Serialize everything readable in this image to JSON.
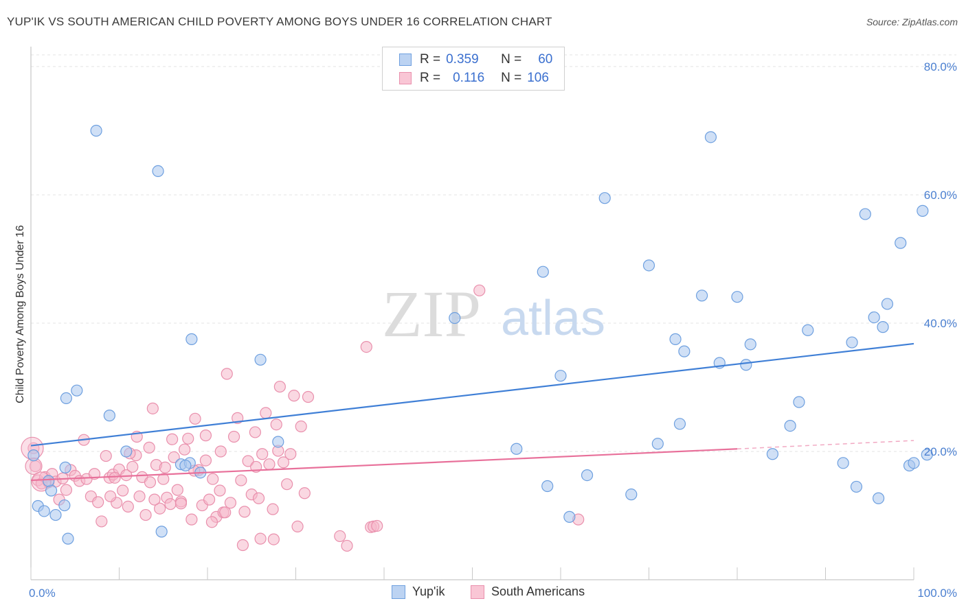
{
  "title": "YUP'IK VS SOUTH AMERICAN CHILD POVERTY AMONG BOYS UNDER 16 CORRELATION CHART",
  "source": "Source: ZipAtlas.com",
  "watermark": {
    "zip": "ZIP",
    "atlas": "atlas"
  },
  "colors": {
    "blue_fill": "#aac6ee",
    "blue_stroke": "#6d9fdf",
    "blue_line": "#3f7fd6",
    "pink_fill": "#f6b8cb",
    "pink_stroke": "#e98fac",
    "pink_line": "#e8709a",
    "tick_text": "#4a7fd0",
    "grid": "#e3e3e3"
  },
  "legend": {
    "rows": [
      {
        "r_label": "R =",
        "r_value": "0.359",
        "n_label": "N =",
        "n_value": "60"
      },
      {
        "r_label": "R =",
        "r_value": "0.116",
        "n_label": "N =",
        "n_value": "106"
      }
    ]
  },
  "bottom_legend": [
    "Yup'ik",
    "South Americans"
  ],
  "chart_data": {
    "type": "scatter",
    "title": "YUP'IK VS SOUTH AMERICAN CHILD POVERTY AMONG BOYS UNDER 16 CORRELATION CHART",
    "xlabel": "",
    "ylabel": "Child Poverty Among Boys Under 16",
    "xlim": [
      0,
      100
    ],
    "ylim": [
      0,
      85
    ],
    "x_tick_labels": [
      "0.0%",
      "100.0%"
    ],
    "y_ticks": [
      20,
      40,
      60,
      80
    ],
    "y_tick_labels": [
      "20.0%",
      "40.0%",
      "60.0%",
      "80.0%"
    ],
    "grid": true,
    "series": [
      {
        "name": "Yup'ik",
        "r": 0.359,
        "n": 60,
        "trend": {
          "x": [
            0,
            100
          ],
          "y": [
            20.9,
            36.8
          ]
        },
        "points": [
          [
            0.3,
            19.4
          ],
          [
            0.8,
            11.5
          ],
          [
            1.5,
            10.7
          ],
          [
            2.3,
            13.9
          ],
          [
            2.8,
            10.1
          ],
          [
            3.8,
            11.6
          ],
          [
            4.2,
            6.4
          ],
          [
            3.9,
            17.5
          ],
          [
            4.0,
            28.3
          ],
          [
            5.2,
            29.5
          ],
          [
            7.4,
            70.0
          ],
          [
            8.9,
            25.6
          ],
          [
            10.8,
            20.0
          ],
          [
            14.4,
            63.7
          ],
          [
            14.8,
            7.5
          ],
          [
            17.0,
            18.0
          ],
          [
            18.0,
            18.2
          ],
          [
            18.2,
            37.5
          ],
          [
            19.2,
            16.7
          ],
          [
            26.0,
            34.3
          ],
          [
            28.0,
            21.5
          ],
          [
            48.0,
            40.8
          ],
          [
            55.0,
            20.4
          ],
          [
            58.0,
            48.0
          ],
          [
            58.5,
            14.6
          ],
          [
            60.0,
            31.8
          ],
          [
            61.0,
            9.8
          ],
          [
            63.0,
            16.3
          ],
          [
            65.0,
            59.5
          ],
          [
            68.0,
            13.3
          ],
          [
            70.0,
            49.0
          ],
          [
            71.0,
            21.2
          ],
          [
            73.0,
            37.5
          ],
          [
            73.5,
            24.3
          ],
          [
            74.0,
            35.6
          ],
          [
            76.0,
            44.3
          ],
          [
            77.0,
            69.0
          ],
          [
            78.0,
            33.8
          ],
          [
            80.0,
            44.1
          ],
          [
            81.0,
            33.5
          ],
          [
            81.5,
            36.7
          ],
          [
            84.0,
            19.6
          ],
          [
            86.0,
            24.0
          ],
          [
            87.0,
            27.7
          ],
          [
            88.0,
            38.9
          ],
          [
            92.0,
            18.2
          ],
          [
            93.0,
            37.0
          ],
          [
            93.5,
            14.5
          ],
          [
            94.5,
            57.0
          ],
          [
            95.5,
            40.9
          ],
          [
            96.5,
            39.4
          ],
          [
            96.0,
            12.7
          ],
          [
            97.0,
            43.0
          ],
          [
            98.5,
            52.5
          ],
          [
            99.5,
            17.8
          ],
          [
            101.0,
            57.5
          ],
          [
            100.0,
            18.2
          ],
          [
            101.5,
            19.5
          ],
          [
            2.0,
            15.4
          ],
          [
            17.5,
            17.8
          ]
        ]
      },
      {
        "name": "South Americans",
        "r": 0.116,
        "n": 106,
        "trend": {
          "x": [
            0,
            80
          ],
          "y": [
            15.5,
            20.4
          ]
        },
        "trend_dashed": {
          "x": [
            80,
            100
          ],
          "y": [
            20.4,
            21.7
          ]
        },
        "points": [
          [
            0.3,
            20.5
          ],
          [
            0.5,
            17.7
          ],
          [
            0.8,
            15.5
          ],
          [
            1.2,
            15.0
          ],
          [
            1.6,
            16.0
          ],
          [
            2.0,
            15.2
          ],
          [
            2.4,
            16.5
          ],
          [
            2.8,
            15.3
          ],
          [
            3.2,
            12.5
          ],
          [
            3.6,
            15.8
          ],
          [
            4.0,
            14.0
          ],
          [
            4.5,
            17.1
          ],
          [
            5.0,
            16.2
          ],
          [
            5.5,
            15.4
          ],
          [
            6.0,
            21.8
          ],
          [
            6.3,
            15.7
          ],
          [
            6.8,
            13.0
          ],
          [
            7.2,
            16.5
          ],
          [
            7.6,
            12.1
          ],
          [
            8.0,
            9.1
          ],
          [
            8.5,
            19.3
          ],
          [
            8.9,
            15.9
          ],
          [
            9.3,
            16.4
          ],
          [
            9.7,
            12.0
          ],
          [
            10.0,
            17.2
          ],
          [
            10.4,
            13.9
          ],
          [
            10.8,
            16.3
          ],
          [
            11.0,
            11.4
          ],
          [
            11.5,
            17.6
          ],
          [
            11.9,
            19.4
          ],
          [
            12.3,
            13.0
          ],
          [
            12.6,
            16.0
          ],
          [
            13.0,
            10.1
          ],
          [
            13.4,
            20.6
          ],
          [
            13.8,
            26.7
          ],
          [
            14.2,
            17.9
          ],
          [
            14.6,
            11.1
          ],
          [
            15.0,
            15.7
          ],
          [
            15.4,
            12.8
          ],
          [
            15.8,
            11.8
          ],
          [
            16.2,
            19.1
          ],
          [
            16.6,
            14.0
          ],
          [
            17.0,
            12.2
          ],
          [
            17.4,
            20.3
          ],
          [
            17.8,
            22.0
          ],
          [
            18.2,
            9.4
          ],
          [
            18.6,
            25.1
          ],
          [
            19.0,
            17.1
          ],
          [
            19.4,
            11.6
          ],
          [
            19.8,
            18.6
          ],
          [
            20.2,
            12.5
          ],
          [
            20.6,
            15.7
          ],
          [
            21.0,
            9.8
          ],
          [
            21.4,
            13.9
          ],
          [
            21.8,
            10.5
          ],
          [
            22.2,
            32.1
          ],
          [
            22.6,
            12.0
          ],
          [
            23.0,
            22.3
          ],
          [
            23.4,
            25.2
          ],
          [
            23.8,
            15.5
          ],
          [
            24.2,
            10.6
          ],
          [
            24.6,
            18.5
          ],
          [
            25.0,
            13.3
          ],
          [
            25.4,
            23.0
          ],
          [
            25.8,
            12.7
          ],
          [
            26.2,
            19.6
          ],
          [
            26.6,
            26.0
          ],
          [
            27.0,
            18.0
          ],
          [
            27.4,
            11.0
          ],
          [
            27.8,
            24.2
          ],
          [
            28.2,
            30.1
          ],
          [
            28.6,
            18.3
          ],
          [
            29.0,
            14.9
          ],
          [
            29.4,
            19.6
          ],
          [
            29.8,
            28.7
          ],
          [
            30.2,
            8.3
          ],
          [
            30.6,
            23.9
          ],
          [
            31.0,
            13.5
          ],
          [
            31.4,
            28.5
          ],
          [
            18.5,
            17.0
          ],
          [
            20.5,
            9.0
          ],
          [
            22.0,
            10.5
          ],
          [
            24.0,
            5.4
          ],
          [
            26.0,
            6.4
          ],
          [
            27.5,
            6.3
          ],
          [
            35.0,
            6.8
          ],
          [
            35.8,
            5.3
          ],
          [
            38.5,
            8.2
          ],
          [
            38.8,
            8.3
          ],
          [
            39.2,
            8.4
          ],
          [
            38.0,
            36.3
          ],
          [
            50.8,
            45.1
          ],
          [
            62.0,
            9.4
          ],
          [
            13.5,
            15.2
          ],
          [
            16.0,
            21.9
          ],
          [
            12.0,
            22.3
          ],
          [
            9.0,
            13.0
          ],
          [
            11.2,
            19.7
          ],
          [
            14.0,
            12.5
          ],
          [
            15.2,
            17.5
          ],
          [
            17.0,
            11.9
          ],
          [
            21.5,
            20.0
          ],
          [
            19.8,
            22.5
          ],
          [
            25.5,
            17.6
          ],
          [
            28.0,
            20.1
          ],
          [
            9.5,
            15.9
          ]
        ]
      }
    ]
  }
}
